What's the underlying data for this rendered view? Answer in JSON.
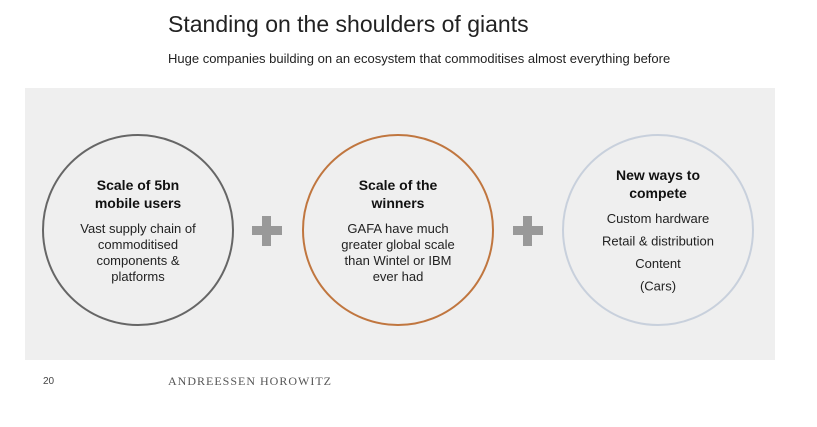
{
  "header": {
    "title": "Standing on the shoulders of giants",
    "subtitle": "Huge companies building on an ecosystem that commoditises almost everything before"
  },
  "nodes": [
    {
      "title": [
        "Scale of 5bn",
        "mobile users"
      ],
      "lines": [
        "Vast supply chain of",
        "commoditised",
        "components &",
        "platforms"
      ]
    },
    {
      "title": [
        "Scale of the",
        "winners"
      ],
      "lines": [
        "GAFA have much",
        "greater global scale",
        "than Wintel or IBM",
        "ever had"
      ]
    },
    {
      "title": [
        "New ways to",
        "compete"
      ],
      "lines": [
        "Custom hardware",
        "Retail & distribution",
        "Content",
        "(Cars)"
      ]
    }
  ],
  "footer": {
    "page": "20",
    "brand": "ANDREESSEN HOROWITZ"
  }
}
